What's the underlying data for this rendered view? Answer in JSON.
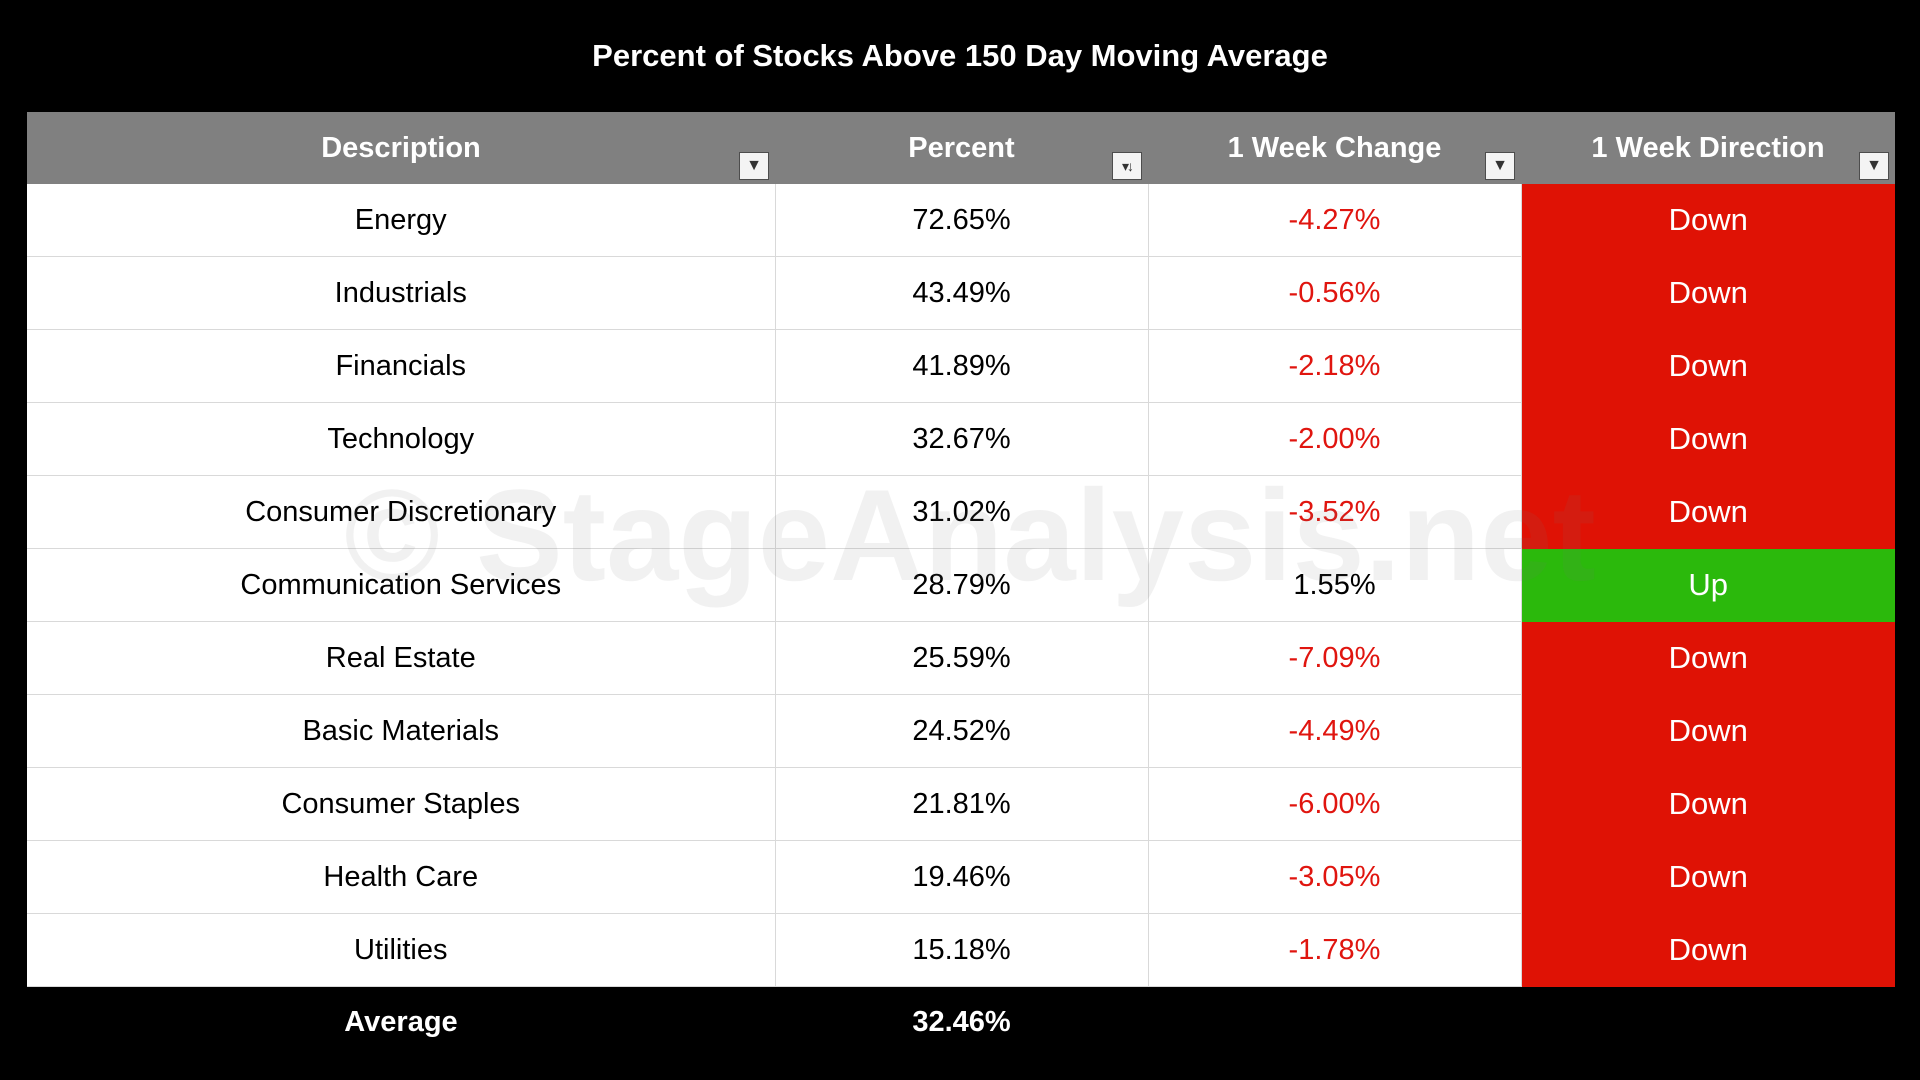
{
  "chart_data": {
    "type": "table",
    "title": "Percent of Stocks Above 150 Day Moving Average",
    "columns": [
      "Description",
      "Percent",
      "1 Week Change",
      "1 Week Direction"
    ],
    "rows": [
      {
        "description": "Energy",
        "percent": "72.65%",
        "change": "-4.27%",
        "direction": "Down"
      },
      {
        "description": "Industrials",
        "percent": "43.49%",
        "change": "-0.56%",
        "direction": "Down"
      },
      {
        "description": "Financials",
        "percent": "41.89%",
        "change": "-2.18%",
        "direction": "Down"
      },
      {
        "description": "Technology",
        "percent": "32.67%",
        "change": "-2.00%",
        "direction": "Down"
      },
      {
        "description": "Consumer Discretionary",
        "percent": "31.02%",
        "change": "-3.52%",
        "direction": "Down"
      },
      {
        "description": "Communication Services",
        "percent": "28.79%",
        "change": "1.55%",
        "direction": "Up"
      },
      {
        "description": "Real Estate",
        "percent": "25.59%",
        "change": "-7.09%",
        "direction": "Down"
      },
      {
        "description": "Basic Materials",
        "percent": "24.52%",
        "change": "-4.49%",
        "direction": "Down"
      },
      {
        "description": "Consumer Staples",
        "percent": "21.81%",
        "change": "-6.00%",
        "direction": "Down"
      },
      {
        "description": "Health Care",
        "percent": "19.46%",
        "change": "-3.05%",
        "direction": "Down"
      },
      {
        "description": "Utilities",
        "percent": "15.18%",
        "change": "-1.78%",
        "direction": "Down"
      }
    ],
    "footer": {
      "label": "Average",
      "percent": "32.46%"
    },
    "watermark": "© StageAnalysis.net",
    "colors": {
      "header_bg": "#808080",
      "down_bg": "#df1205",
      "up_bg": "#2bb90c",
      "negative_text": "#e0150f"
    }
  }
}
